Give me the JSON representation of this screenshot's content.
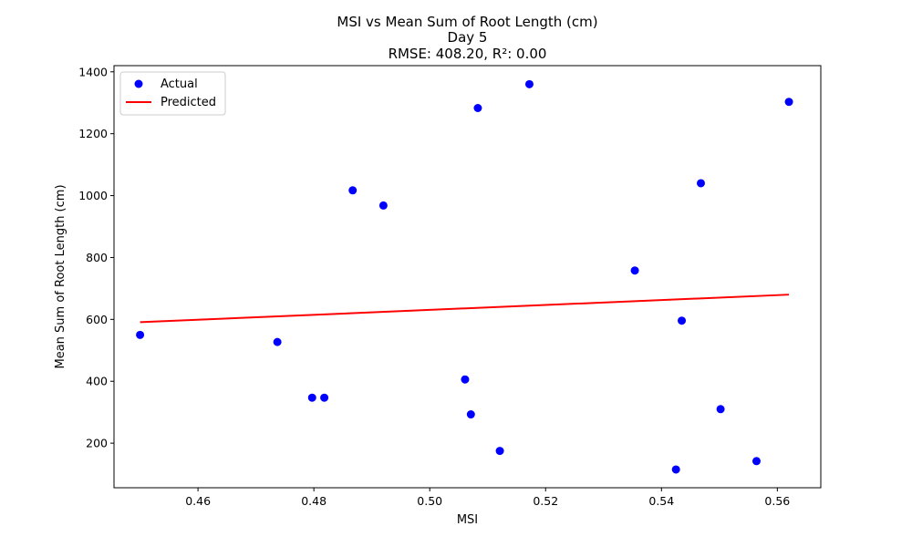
{
  "chart_data": {
    "type": "scatter",
    "title_lines": [
      "MSI vs Mean Sum of Root Length (cm)",
      "Day 5",
      "RMSE: 408.20, R²: 0.00"
    ],
    "xlabel": "MSI",
    "ylabel": "Mean Sum of Root Length (cm)",
    "xlim": [
      0.4455,
      0.5675
    ],
    "ylim": [
      56,
      1420
    ],
    "x_ticks": [
      0.46,
      0.48,
      0.5,
      0.52,
      0.54,
      0.56
    ],
    "x_tick_labels": [
      "0.46",
      "0.48",
      "0.50",
      "0.52",
      "0.54",
      "0.56"
    ],
    "y_ticks": [
      200,
      400,
      600,
      800,
      1000,
      1200,
      1400
    ],
    "y_tick_labels": [
      "200",
      "400",
      "600",
      "800",
      "1000",
      "1200",
      "1400"
    ],
    "grid": false,
    "legend_position": "upper-left",
    "series": [
      {
        "name": "Actual",
        "kind": "scatter",
        "color": "#0000ff",
        "points": [
          {
            "x": 0.45,
            "y": 550
          },
          {
            "x": 0.4737,
            "y": 527
          },
          {
            "x": 0.4797,
            "y": 347
          },
          {
            "x": 0.4818,
            "y": 347
          },
          {
            "x": 0.4867,
            "y": 1017
          },
          {
            "x": 0.492,
            "y": 968
          },
          {
            "x": 0.5061,
            "y": 406
          },
          {
            "x": 0.5071,
            "y": 293
          },
          {
            "x": 0.5083,
            "y": 1283
          },
          {
            "x": 0.5121,
            "y": 175
          },
          {
            "x": 0.5172,
            "y": 1360
          },
          {
            "x": 0.5354,
            "y": 758
          },
          {
            "x": 0.5425,
            "y": 115
          },
          {
            "x": 0.5435,
            "y": 596
          },
          {
            "x": 0.5468,
            "y": 1040
          },
          {
            "x": 0.5502,
            "y": 310
          },
          {
            "x": 0.5564,
            "y": 142
          },
          {
            "x": 0.562,
            "y": 1303
          }
        ]
      },
      {
        "name": "Predicted",
        "kind": "line",
        "color": "#ff0000",
        "points": [
          {
            "x": 0.45,
            "y": 591
          },
          {
            "x": 0.562,
            "y": 680
          }
        ]
      }
    ]
  }
}
